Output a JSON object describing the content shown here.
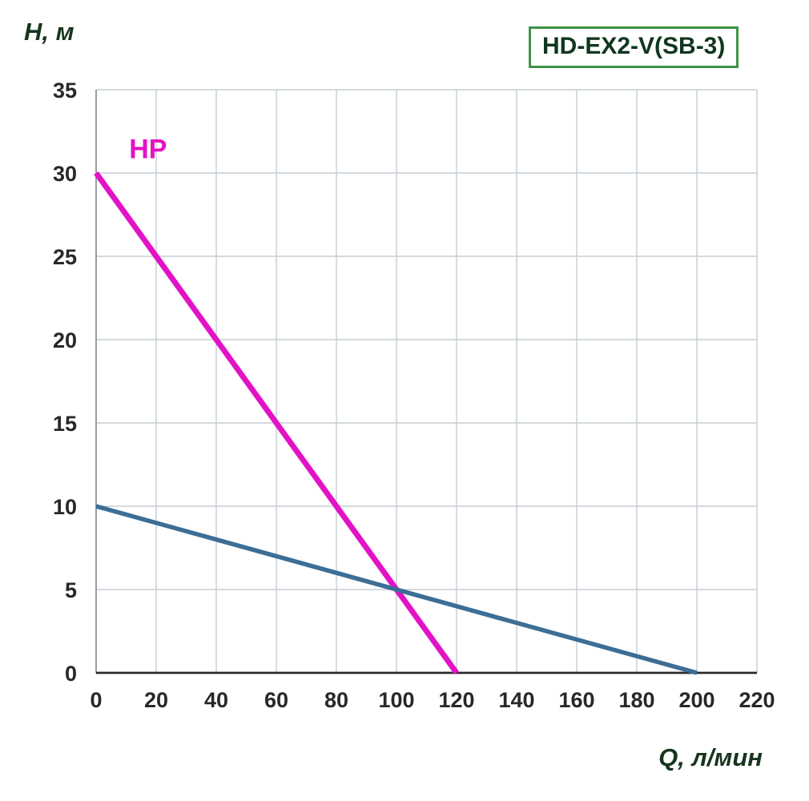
{
  "chart_data": {
    "type": "line",
    "title": "HD-EX2-V(SB-3)",
    "xlabel": "Q, л/мин",
    "ylabel": "H, м",
    "xlim": [
      0,
      220
    ],
    "ylim": [
      0,
      35
    ],
    "x_ticks": [
      0,
      20,
      40,
      60,
      80,
      100,
      120,
      140,
      160,
      180,
      200,
      220
    ],
    "y_ticks": [
      0,
      5,
      10,
      15,
      20,
      25,
      30,
      35
    ],
    "grid": true,
    "legend_position": "none",
    "series": [
      {
        "name": "HP",
        "color": "#e312c6",
        "width": 7,
        "points": [
          [
            0,
            30
          ],
          [
            120,
            0
          ]
        ],
        "label": {
          "text": "HP",
          "x": 11,
          "y": 30.9
        }
      },
      {
        "name": "curve-2",
        "color": "#3c6e96",
        "width": 5.5,
        "points": [
          [
            0,
            10
          ],
          [
            200,
            0
          ]
        ]
      }
    ],
    "colors": {
      "grid": "#c6cdd4",
      "y_axis": "#8f969c",
      "x_axis": "#2b2b2b",
      "tick_text": "#282828",
      "title_border": "#3f9447",
      "title_text": "#10371e",
      "axis_label_text": "#16351d"
    }
  }
}
